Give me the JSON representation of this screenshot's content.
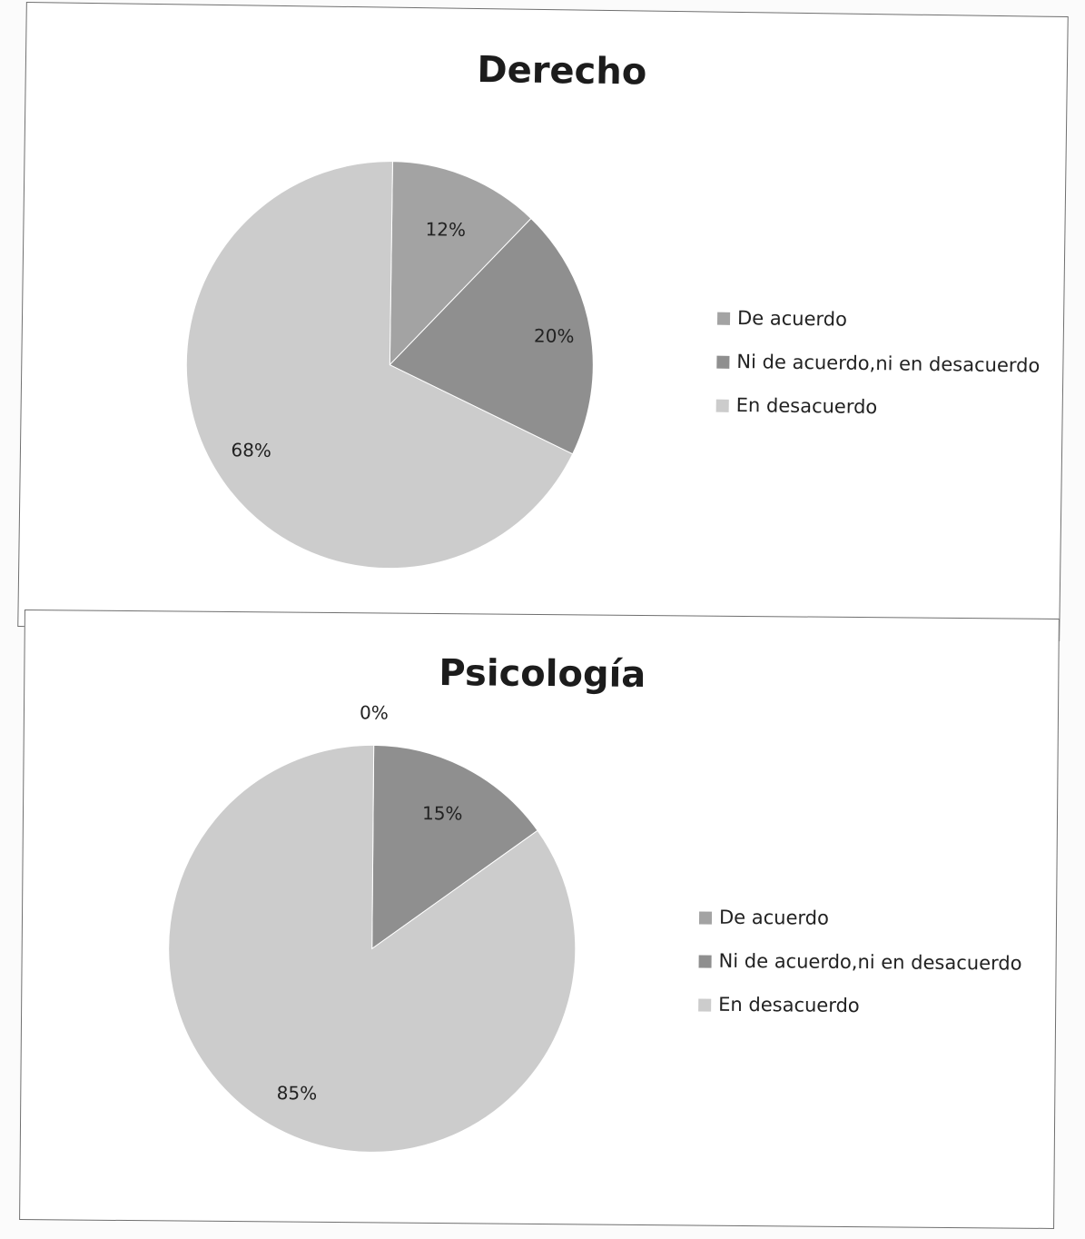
{
  "colors": {
    "de_acuerdo": "#a3a3a3",
    "ni_de_acuerdo": "#8f8f8f",
    "en_desacuerdo": "#cccccc",
    "slice_border": "#ffffff",
    "frame": "#6f6f6f"
  },
  "chart_data": [
    {
      "type": "pie",
      "title": "Derecho",
      "categories": [
        "De acuerdo",
        "Ni de acuerdo,ni en desacuerdo",
        "En desacuerdo"
      ],
      "values": [
        12,
        20,
        68
      ],
      "data_labels": [
        "12%",
        "20%",
        "68%"
      ],
      "legend": {
        "entries": [
          "De acuerdo",
          "Ni de acuerdo,ni en desacuerdo",
          "En desacuerdo"
        ],
        "placement": "right"
      }
    },
    {
      "type": "pie",
      "title": "Psicología",
      "categories": [
        "De acuerdo",
        "Ni de acuerdo,ni en desacuerdo",
        "En desacuerdo"
      ],
      "values": [
        0,
        15,
        85
      ],
      "data_labels": [
        "0%",
        "15%",
        "85%"
      ],
      "legend": {
        "entries": [
          "De acuerdo",
          "Ni de acuerdo,ni en desacuerdo",
          "En desacuerdo"
        ],
        "placement": "right"
      }
    }
  ]
}
